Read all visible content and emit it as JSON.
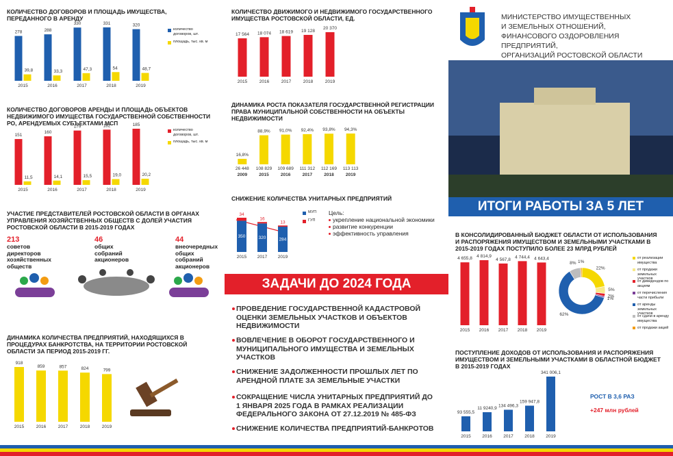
{
  "header": {
    "lines": [
      "МИНИСТЕРСТВО ИМУЩЕСТВЕННЫХ",
      "И ЗЕМЕЛЬНЫХ ОТНОШЕНИЙ,",
      "ФИНАНСОВОГО ОЗДОРОВЛЕНИЯ ПРЕДПРИЯТИЙ,",
      "ОРГАНИЗАЦИЙ РОСТОВСКОЙ ОБЛАСТИ"
    ]
  },
  "banner": "ИТОГИ РАБОТЫ ЗА 5 ЛЕТ",
  "participation": {
    "title": "УЧАСТИЕ ПРЕДСТАВИТЕЛЕЙ РОСТОВСКОЙ ОБЛАСТИ В ОРГАНАХ УПРАВЛЕНИЯ ХОЗЯЙСТВЕННЫХ ОБЩЕСТВ С ДОЛЕЙ УЧАСТИЯ РОСТОВСКОЙ ОБЛАСТИ В 2015-2019 ГОДАХ",
    "items": [
      {
        "number": 213,
        "label": "советов директоров хозяйственных обществ"
      },
      {
        "number": 46,
        "label": "общих собраний акционеров"
      },
      {
        "number": 44,
        "label": "внеочередных общих собраний акционеров"
      }
    ]
  },
  "tasks": {
    "title": "ЗАДАЧИ ДО 2024 ГОДА",
    "items": [
      "ПРОВЕДЕНИЕ ГОСУДАРСТВЕННОЙ КАДАСТРОВОЙ ОЦЕНКИ ЗЕМЕЛЬНЫХ УЧАСТКОВ И ОБЪЕКТОВ НЕДВИЖИМОСТИ",
      "ВОВЛЕЧЕНИЕ В ОБОРОТ ГОСУДАРСТВЕННОГО И МУНИЦИПАЛЬНОГО ИМУЩЕСТВА И ЗЕМЕЛЬНЫХ УЧАСТКОВ",
      "СНИЖЕНИЕ ЗАДОЛЖЕННОСТИ ПРОШЛЫХ ЛЕТ ПО АРЕНДНОЙ ПЛАТЕ ЗА ЗЕМЕЛЬНЫЕ УЧАСТКИ",
      "СОКРАЩЕНИЕ ЧИСЛА УНИТАРНЫХ ПРЕДПРИЯТИЙ ДО 1 ЯНВАРЯ 2025 ГОДА В РАМКАХ РЕАЛИЗАЦИИ ФЕДЕРАЛЬНОГО ЗАКОНА ОТ 27.12.2019 № 485-ФЗ",
      "СНИЖЕНИЕ КОЛИЧЕСТВА ПРЕДПРИЯТИЙ-БАНКРОТОВ"
    ]
  },
  "chart_data": [
    {
      "type": "bar",
      "title": "КОЛИЧЕСТВО ДОГОВОРОВ И ПЛОЩАДЬ ИМУЩЕСТВА, ПЕРЕДАННОГО В АРЕНДУ",
      "categories": [
        "2015",
        "2016",
        "2017",
        "2018",
        "2019"
      ],
      "series": [
        {
          "name": "количество договоров, шт.",
          "color": "#1f5fae",
          "values": [
            278,
            288,
            330,
            331,
            320
          ]
        },
        {
          "name": "площадь, тыс. кв. м",
          "color": "#f5d800",
          "values": [
            39.8,
            33.3,
            47.3,
            54,
            48.7
          ],
          "value_labels": [
            "39,8",
            "33,3",
            "47,3",
            "54",
            "48,7"
          ]
        }
      ]
    },
    {
      "type": "bar",
      "title": "КОЛИЧЕСТВО ДОГОВОРОВ АРЕНДЫ И ПЛОЩАДЬ ОБЪЕКТОВ НЕДВИЖИМОГО ИМУЩЕСТВА ГОСУДАРСТВЕННОЙ СОБСТВЕННОСТИ РО, АРЕНДУЕМЫХ СУБЪЕКТАМИ МСП",
      "categories": [
        "2015",
        "2016",
        "2017",
        "2018",
        "2019"
      ],
      "series": [
        {
          "name": "количество договоров, шт.",
          "color": "#e3202a",
          "values": [
            151,
            160,
            179,
            182,
            185
          ]
        },
        {
          "name": "площадь, тыс. кв. м",
          "color": "#f5d800",
          "values": [
            11.5,
            14.1,
            15.5,
            19.0,
            20.2
          ],
          "value_labels": [
            "11,5",
            "14,1",
            "15,5",
            "19,0",
            "20,2"
          ]
        }
      ]
    },
    {
      "type": "bar",
      "title": "ДИНАМИКА КОЛИЧЕСТВА ПРЕДПРИЯТИЙ, НАХОДЯЩИХСЯ В ПРОЦЕДУРАХ БАНКРОТСТВА, НА ТЕРРИТОРИИ РОСТОВСКОЙ ОБЛАСТИ ЗА ПЕРИОД 2015-2019 ГГ.",
      "categories": [
        "2015",
        "2016",
        "2017",
        "2018",
        "2019"
      ],
      "color": "#f5d800",
      "values": [
        918,
        859,
        857,
        824,
        799
      ]
    },
    {
      "type": "bar",
      "title": "КОЛИЧЕСТВО ДВИЖИМОГО И НЕДВИЖИМОГО ГОСУДАРСТВЕННОГО ИМУЩЕСТВА РОСТОВСКОЙ ОБЛАСТИ, ЕД.",
      "categories": [
        "2015",
        "2016",
        "2017",
        "2018",
        "2019"
      ],
      "color": "#e3202a",
      "values": [
        17564,
        18074,
        18619,
        19128,
        20370
      ],
      "value_labels": [
        "17 564",
        "18 074",
        "18 619",
        "19 128",
        "20 370"
      ]
    },
    {
      "type": "bar",
      "title": "ДИНАМИКА РОСТА ПОКАЗАТЕЛЯ ГОСУДАРСТВЕННОЙ РЕГИСТРАЦИИ ПРАВА МУНИЦИПАЛЬНОЙ СОБСТВЕННОСТИ НА ОБЪЕКТЫ НЕДВИЖИМОСТИ",
      "categories": [
        "2009",
        "2015",
        "2016",
        "2017",
        "2018",
        "2019"
      ],
      "color": "#f5d800",
      "values": [
        16.8,
        88.9,
        91.0,
        92.4,
        93.8,
        94.3
      ],
      "value_labels": [
        "16,8%",
        "88,9%",
        "91,0%",
        "92,4%",
        "93,8%",
        "94,3%"
      ],
      "object_counts": [
        26448,
        108829,
        109689,
        111312,
        112169,
        113113
      ],
      "object_count_labels": [
        "26 448",
        "108 829",
        "109 689",
        "111 312",
        "112 169",
        "113 113"
      ]
    },
    {
      "type": "stacked_bar",
      "title": "СНИЖЕНИЕ КОЛИЧЕСТВА УНИТАРНЫХ ПРЕДПРИЯТИЙ",
      "categories": [
        "2015",
        "2017",
        "2019"
      ],
      "series": [
        {
          "name": "МУП",
          "color": "#1f5fae",
          "values": [
            350,
            320,
            284
          ]
        },
        {
          "name": "ГУП",
          "color": "#e3202a",
          "values": [
            34,
            16,
            13
          ]
        }
      ],
      "goal_title": "Цель:",
      "goals": [
        "укрепление национальной экономики",
        "развитие конкуренции",
        "эффективность управления"
      ]
    },
    {
      "type": "bar",
      "title": "В КОНСОЛИДИРОВАННЫЙ БЮДЖЕТ ОБЛАСТИ ОТ ИСПОЛЬЗОВАНИЯ И РАСПОРЯЖЕНИЯ ИМУЩЕСТВОМ И ЗЕМЕЛЬНЫМИ УЧАСТКАМИ В 2015-2019 ГОДАХ ПОСТУПИЛО БОЛЕЕ 23 МЛРД РУБЛЕЙ",
      "categories": [
        "2015",
        "2016",
        "2017",
        "2018",
        "2019"
      ],
      "color": "#e3202a",
      "values": [
        4655.8,
        4814.9,
        4567.8,
        4744.4,
        4643.4
      ],
      "value_labels": [
        "4 655,8",
        "4 814,9",
        "4 567,8",
        "4 744,4",
        "4 643,4"
      ]
    },
    {
      "type": "pie",
      "categories": [
        "от реализации имущества",
        "от продажи земельных участков",
        "от дивидендов по акциям",
        "от перечисления части прибыли",
        "от аренды земельных участков",
        "от сдачи в аренду имущества",
        "от продажи акций"
      ],
      "colors": [
        "#f5d800",
        "#f7e98a",
        "#e3202a",
        "#7b3f98",
        "#1f5fae",
        "#bdbdbd",
        "#f39c12"
      ],
      "values": [
        22,
        5,
        2,
        1,
        62,
        8,
        1
      ],
      "value_labels": [
        "22%",
        "5%",
        "2%",
        "1%",
        "62%",
        "8%",
        "1%"
      ]
    },
    {
      "type": "bar",
      "title": "ПОСТУПЛЕНИЕ ДОХОДОВ ОТ ИСПОЛЬЗОВАНИЯ И РАСПОРЯЖЕНИЯ ИМУЩЕСТВОМ И ЗЕМЕЛЬНЫМИ УЧАСТКАМИ В ОБЛАСТНОЙ БЮДЖЕТ В 2015-2019 ГОДАХ",
      "categories": [
        "2015",
        "2016",
        "2017",
        "2018",
        "2019"
      ],
      "color": "#1f5fae",
      "values": [
        93555.5,
        119240.9,
        134496.3,
        159947.8,
        341006.1
      ],
      "value_labels": [
        "93 555,5",
        "11 9240,9",
        "134 496,3",
        "159 947,8",
        "341 006,1"
      ],
      "annotations": [
        "РОСТ В 3,6 РАЗ",
        "+247 млн рублей"
      ]
    }
  ]
}
